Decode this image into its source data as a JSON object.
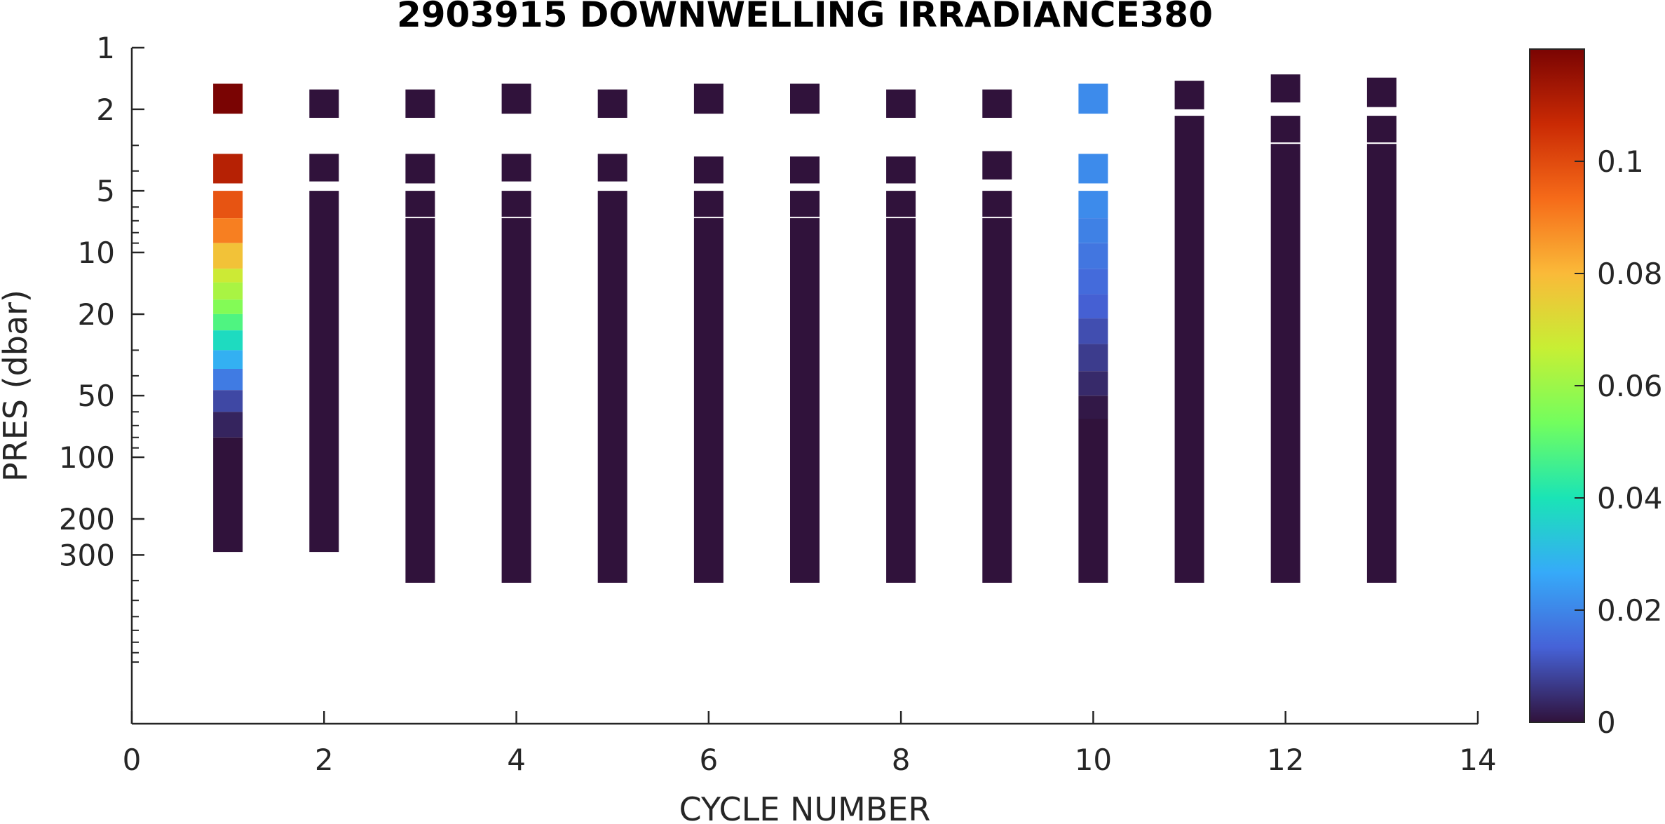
{
  "chart_data": {
    "type": "heatmap",
    "title": "2903915  DOWNWELLING IRRADIANCE380",
    "xlabel": "CYCLE NUMBER",
    "ylabel": "PRES (dbar)",
    "xlim": [
      0,
      14
    ],
    "ylim": [
      1,
      2000
    ],
    "y_scale": "log",
    "y_reversed": true,
    "xticks": [
      0,
      2,
      4,
      6,
      8,
      10,
      12,
      14
    ],
    "yticks": [
      1,
      2,
      5,
      10,
      20,
      50,
      100,
      200,
      300
    ],
    "grid": false,
    "colorbar": {
      "colormap": "turbo",
      "range": [
        0,
        0.12
      ],
      "ticks": [
        0,
        0.02,
        0.04,
        0.06,
        0.08,
        0.1
      ],
      "tick_labels": [
        "0",
        "0.02",
        "0.04",
        "0.06",
        "0.08",
        "0.1"
      ]
    },
    "colormap_stops": [
      "#30123b",
      "#4662d7",
      "#36aaf9",
      "#1ae4b6",
      "#72fe5e",
      "#c7ef34",
      "#faba39",
      "#f66b19",
      "#ca2a04",
      "#7a0403"
    ],
    "columns": [
      {
        "cycle": 1,
        "segments": [
          {
            "top": 1.5,
            "bottom": 2.1,
            "value": 0.12
          },
          {
            "top": 3.3,
            "bottom": 4.6,
            "value": 0.11
          },
          {
            "top": 5.0,
            "bottom": 6.8,
            "value": 0.098
          },
          {
            "top": 6.8,
            "bottom": 9.0,
            "value": 0.09
          },
          {
            "top": 9.0,
            "bottom": 12,
            "value": 0.078
          },
          {
            "top": 12,
            "bottom": 14,
            "value": 0.068
          },
          {
            "top": 14,
            "bottom": 17,
            "value": 0.062
          },
          {
            "top": 17,
            "bottom": 20,
            "value": 0.056
          },
          {
            "top": 20,
            "bottom": 24,
            "value": 0.048
          },
          {
            "top": 24,
            "bottom": 30,
            "value": 0.038
          },
          {
            "top": 30,
            "bottom": 37,
            "value": 0.028
          },
          {
            "top": 37,
            "bottom": 47,
            "value": 0.018
          },
          {
            "top": 47,
            "bottom": 60,
            "value": 0.009
          },
          {
            "top": 60,
            "bottom": 80,
            "value": 0.003
          },
          {
            "top": 80,
            "bottom": 290,
            "value": 0.0
          }
        ]
      },
      {
        "cycle": 2,
        "segments": [
          {
            "top": 1.6,
            "bottom": 2.2,
            "value": 0.0
          },
          {
            "top": 3.3,
            "bottom": 4.5,
            "value": 0.0
          },
          {
            "top": 5.0,
            "bottom": 290,
            "value": 0.0
          }
        ]
      },
      {
        "cycle": 3,
        "segments": [
          {
            "top": 1.6,
            "bottom": 2.2,
            "value": 0.0
          },
          {
            "top": 3.3,
            "bottom": 4.6,
            "value": 0.0
          },
          {
            "top": 5.0,
            "bottom": 6.7,
            "value": 0.0
          },
          {
            "top": 6.8,
            "bottom": 410,
            "value": 0.0
          }
        ]
      },
      {
        "cycle": 4,
        "segments": [
          {
            "top": 1.5,
            "bottom": 2.1,
            "value": 0.0
          },
          {
            "top": 3.3,
            "bottom": 4.5,
            "value": 0.0
          },
          {
            "top": 5.0,
            "bottom": 6.7,
            "value": 0.0
          },
          {
            "top": 6.8,
            "bottom": 410,
            "value": 0.0
          }
        ]
      },
      {
        "cycle": 5,
        "segments": [
          {
            "top": 1.6,
            "bottom": 2.2,
            "value": 0.0
          },
          {
            "top": 3.3,
            "bottom": 4.5,
            "value": 0.0
          },
          {
            "top": 5.0,
            "bottom": 410,
            "value": 0.0
          }
        ]
      },
      {
        "cycle": 6,
        "segments": [
          {
            "top": 1.5,
            "bottom": 2.1,
            "value": 0.0
          },
          {
            "top": 3.4,
            "bottom": 4.6,
            "value": 0.0
          },
          {
            "top": 5.0,
            "bottom": 6.7,
            "value": 0.0
          },
          {
            "top": 6.8,
            "bottom": 410,
            "value": 0.0
          }
        ]
      },
      {
        "cycle": 7,
        "segments": [
          {
            "top": 1.5,
            "bottom": 2.1,
            "value": 0.0
          },
          {
            "top": 3.4,
            "bottom": 4.6,
            "value": 0.0
          },
          {
            "top": 5.0,
            "bottom": 6.7,
            "value": 0.0
          },
          {
            "top": 6.8,
            "bottom": 410,
            "value": 0.0
          }
        ]
      },
      {
        "cycle": 8,
        "segments": [
          {
            "top": 1.6,
            "bottom": 2.2,
            "value": 0.0
          },
          {
            "top": 3.4,
            "bottom": 4.6,
            "value": 0.0
          },
          {
            "top": 5.0,
            "bottom": 6.7,
            "value": 0.0
          },
          {
            "top": 6.8,
            "bottom": 410,
            "value": 0.0
          }
        ]
      },
      {
        "cycle": 9,
        "segments": [
          {
            "top": 1.6,
            "bottom": 2.2,
            "value": 0.0
          },
          {
            "top": 3.2,
            "bottom": 4.4,
            "value": 0.0
          },
          {
            "top": 5.0,
            "bottom": 6.7,
            "value": 0.0
          },
          {
            "top": 6.8,
            "bottom": 410,
            "value": 0.0
          }
        ]
      },
      {
        "cycle": 10,
        "segments": [
          {
            "top": 1.5,
            "bottom": 2.1,
            "value": 0.021
          },
          {
            "top": 3.3,
            "bottom": 4.6,
            "value": 0.021
          },
          {
            "top": 5.0,
            "bottom": 6.8,
            "value": 0.021
          },
          {
            "top": 6.8,
            "bottom": 9.0,
            "value": 0.019
          },
          {
            "top": 9.0,
            "bottom": 12,
            "value": 0.017
          },
          {
            "top": 12,
            "bottom": 16,
            "value": 0.015
          },
          {
            "top": 16,
            "bottom": 21,
            "value": 0.013
          },
          {
            "top": 21,
            "bottom": 28,
            "value": 0.01
          },
          {
            "top": 28,
            "bottom": 38,
            "value": 0.007
          },
          {
            "top": 38,
            "bottom": 50,
            "value": 0.004
          },
          {
            "top": 50,
            "bottom": 65,
            "value": 0.001
          },
          {
            "top": 65,
            "bottom": 410,
            "value": 0.0
          }
        ]
      },
      {
        "cycle": 11,
        "segments": [
          {
            "top": 1.45,
            "bottom": 2.0,
            "value": 0.0
          },
          {
            "top": 2.15,
            "bottom": 410,
            "value": 0.0
          }
        ]
      },
      {
        "cycle": 12,
        "segments": [
          {
            "top": 1.35,
            "bottom": 1.85,
            "value": 0.0
          },
          {
            "top": 2.15,
            "bottom": 2.9,
            "value": 0.0
          },
          {
            "top": 2.95,
            "bottom": 410,
            "value": 0.0
          }
        ]
      },
      {
        "cycle": 13,
        "segments": [
          {
            "top": 1.4,
            "bottom": 1.95,
            "value": 0.0
          },
          {
            "top": 2.15,
            "bottom": 2.9,
            "value": 0.0
          },
          {
            "top": 2.95,
            "bottom": 410,
            "value": 0.0
          }
        ]
      }
    ]
  }
}
